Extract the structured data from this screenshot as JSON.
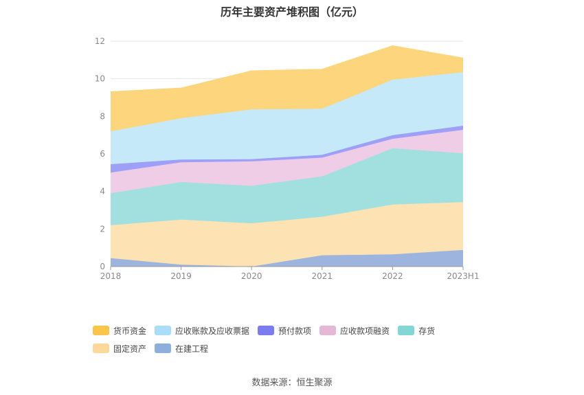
{
  "title": "历年主要资产堆积图（亿元）",
  "source": "数据来源：恒生聚源",
  "chart_data": {
    "type": "area",
    "stacked": true,
    "categories": [
      "2018",
      "2019",
      "2020",
      "2021",
      "2022",
      "2023H1"
    ],
    "ylim": [
      0,
      12
    ],
    "yticks": [
      0,
      2,
      4,
      6,
      8,
      10,
      12
    ],
    "grid": true,
    "legend_position": "bottom",
    "series": [
      {
        "name": "在建工程",
        "color": "#9db5de",
        "values": [
          0.45,
          0.1,
          0.0,
          0.6,
          0.65,
          0.88
        ]
      },
      {
        "name": "固定资产",
        "color": "#fde3b4",
        "values": [
          1.75,
          2.4,
          2.3,
          2.05,
          2.65,
          2.55
        ]
      },
      {
        "name": "存货",
        "color": "#a2e0df",
        "values": [
          1.7,
          2.0,
          2.0,
          2.15,
          3.0,
          2.6
        ]
      },
      {
        "name": "应收款项融资",
        "color": "#efcde6",
        "values": [
          1.1,
          1.05,
          1.3,
          1.0,
          0.5,
          1.25
        ]
      },
      {
        "name": "预付款项",
        "color": "#9e9ff7",
        "values": [
          0.45,
          0.15,
          0.12,
          0.15,
          0.2,
          0.22
        ]
      },
      {
        "name": "应收账款及应收票据",
        "color": "#c6e9f9",
        "values": [
          1.75,
          2.2,
          2.65,
          2.45,
          2.95,
          2.85
        ]
      },
      {
        "name": "货币资金",
        "color": "#fdd57d",
        "values": [
          2.1,
          1.6,
          2.05,
          2.1,
          1.8,
          0.75
        ]
      }
    ]
  },
  "legend_colors": {
    "货币资金": "#fbc54a",
    "应收账款及应收票据": "#a9ddf8",
    "预付款项": "#7b7cf0",
    "应收款项融资": "#e6b8d8",
    "存货": "#84d6d4",
    "固定资产": "#fcd99b",
    "在建工程": "#8eaedb"
  },
  "legend_order": [
    "货币资金",
    "应收账款及应收票据",
    "预付款项",
    "应收款项融资",
    "存货",
    "固定资产",
    "在建工程"
  ]
}
